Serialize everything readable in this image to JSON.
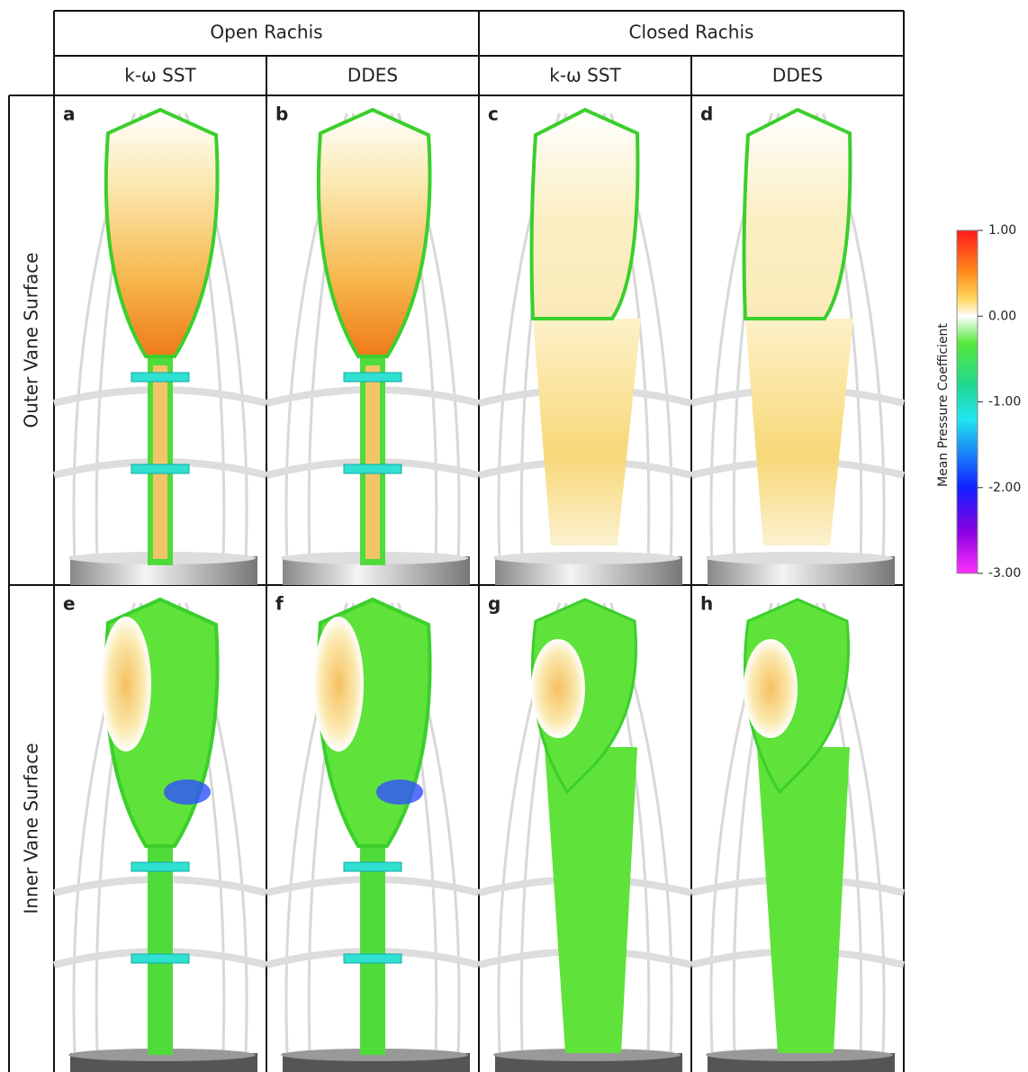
{
  "header": {
    "groups": [
      "Open Rachis",
      "Closed Rachis"
    ],
    "columns": [
      "k-ω SST",
      "DDES",
      "k-ω SST",
      "DDES"
    ]
  },
  "rows": [
    {
      "label": "Outer Vane Surface",
      "panels": [
        "a",
        "b",
        "c",
        "d"
      ]
    },
    {
      "label": "Inner Vane Surface",
      "panels": [
        "e",
        "f",
        "g",
        "h"
      ]
    }
  ],
  "colorbar": {
    "label": "Mean Pressure Coefficient",
    "ticks": [
      {
        "value": 1,
        "label": "1.00"
      },
      {
        "value": 0,
        "label": "0.00"
      },
      {
        "value": -1,
        "label": "-1.00"
      },
      {
        "value": -2,
        "label": "-2.00"
      },
      {
        "value": -3,
        "label": "-3.00"
      }
    ]
  }
}
